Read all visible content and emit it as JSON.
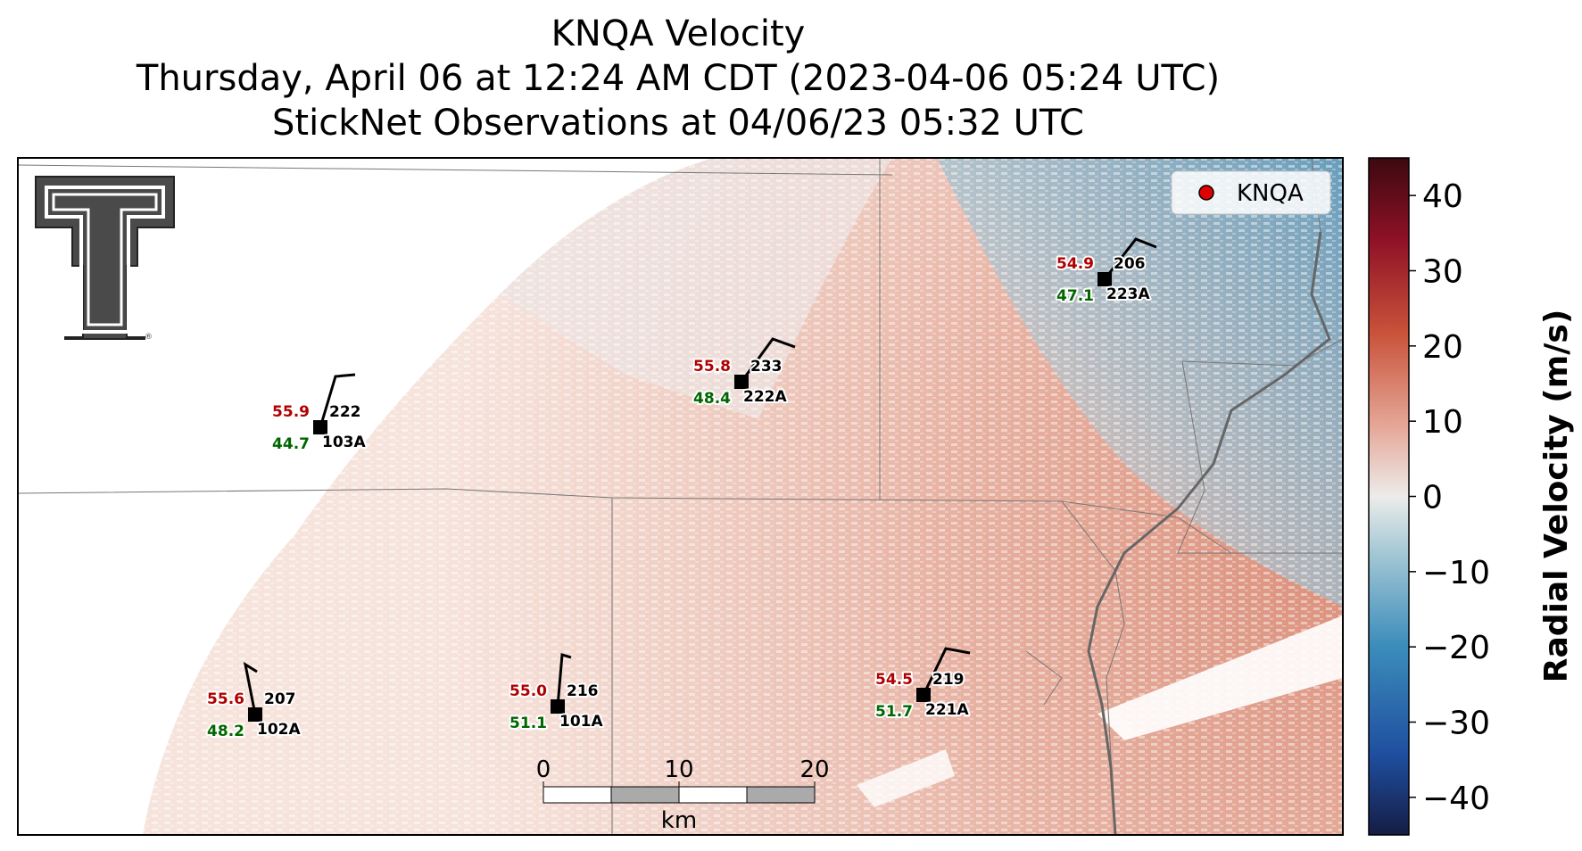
{
  "title": {
    "line1": "KNQA Velocity",
    "line2": "Thursday, April 06 at 12:24 AM CDT (2023-04-06 05:24 UTC)",
    "line3": "StickNet Observations at 04/06/23 05:32 UTC"
  },
  "legend": {
    "label": "KNQA",
    "marker_color": "#e00000"
  },
  "colorbar": {
    "label": "Radial Velocity (m/s)",
    "ticks": [
      "40",
      "30",
      "20",
      "10",
      "0",
      "−10",
      "−20",
      "−30",
      "−40"
    ],
    "range": [
      -45,
      45
    ]
  },
  "scale_bar": {
    "ticks": [
      "0",
      "10",
      "20"
    ],
    "unit": "km"
  },
  "logo": {
    "name": "texas-tech-double-t-logo"
  },
  "stations": [
    {
      "temp": "55.9",
      "id": "222",
      "dew": "44.7",
      "probe": "103A"
    },
    {
      "temp": "55.8",
      "id": "233",
      "dew": "48.4",
      "probe": "222A"
    },
    {
      "temp": "54.9",
      "id": "206",
      "dew": "47.1",
      "probe": "223A"
    },
    {
      "temp": "55.6",
      "id": "207",
      "dew": "48.2",
      "probe": "102A"
    },
    {
      "temp": "55.0",
      "id": "216",
      "dew": "51.1",
      "probe": "101A"
    },
    {
      "temp": "54.5",
      "id": "219",
      "dew": "51.7",
      "probe": "221A"
    }
  ]
}
